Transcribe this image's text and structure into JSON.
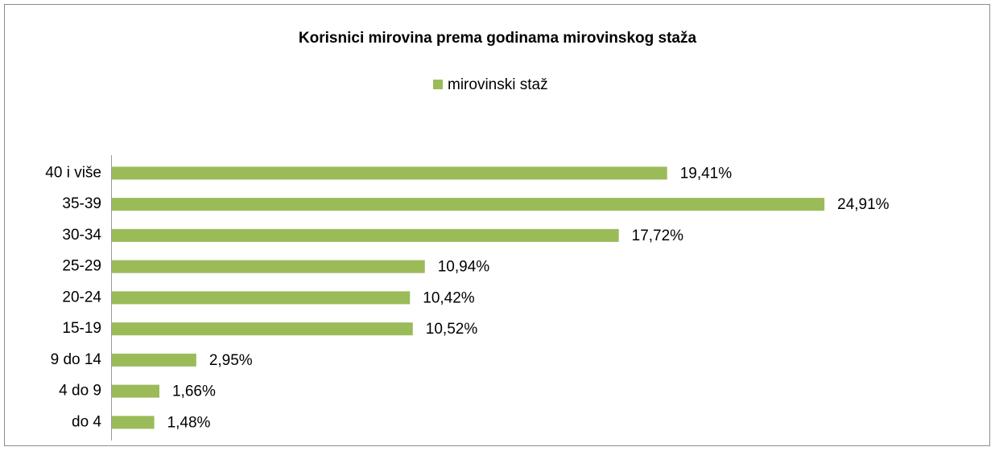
{
  "chart_data": {
    "type": "bar",
    "orientation": "horizontal",
    "title": "Korisnici mirovina prema godinama mirovinskog staža",
    "categories": [
      "40 i više",
      "35-39",
      "30-34",
      "25-29",
      "20-24",
      "15-19",
      "9 do 14",
      "4 do 9",
      "do 4"
    ],
    "series": [
      {
        "name": "mirovinski staž",
        "color": "#9bbb59",
        "values": [
          19.41,
          24.91,
          17.72,
          10.94,
          10.42,
          10.52,
          2.95,
          1.66,
          1.48
        ],
        "value_labels": [
          "19,41%",
          "24,91%",
          "17,72%",
          "10,94%",
          "10,42%",
          "10,52%",
          "2,95%",
          "1,66%",
          "1,48%"
        ]
      }
    ],
    "xlim": [
      0,
      30
    ],
    "legend": "top"
  }
}
